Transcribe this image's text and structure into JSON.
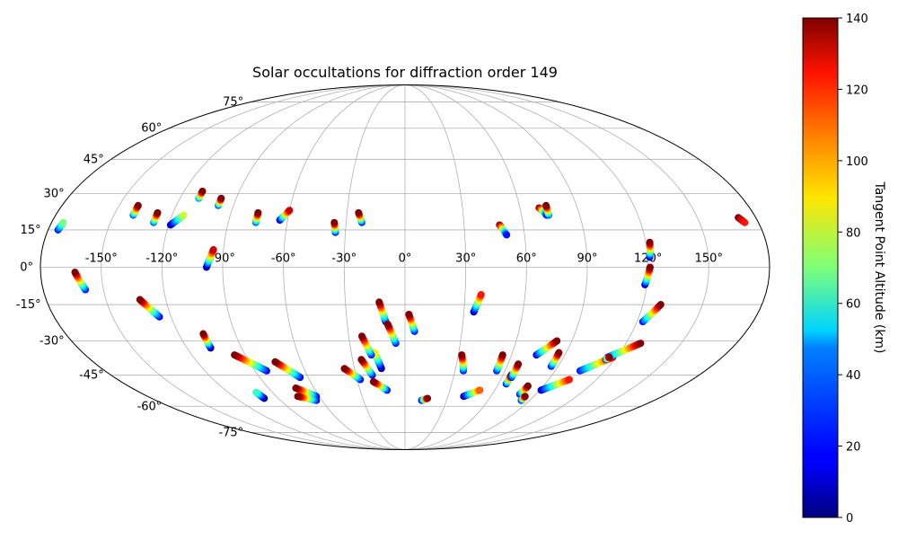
{
  "chart_data": {
    "type": "scatter",
    "projection": "mollweide",
    "title": "Solar occultations for diffraction order 149",
    "x_ticks": [
      "-150°",
      "-120°",
      "-90°",
      "-60°",
      "-30°",
      "0°",
      "30°",
      "60°",
      "90°",
      "120°",
      "150°"
    ],
    "x_tick_values": [
      -150,
      -120,
      -90,
      -60,
      -30,
      0,
      30,
      60,
      90,
      120,
      150
    ],
    "y_ticks": [
      "-75°",
      "-60°",
      "-45°",
      "-30°",
      "-15°",
      "0°",
      "15°",
      "30°",
      "45°",
      "60°",
      "75°"
    ],
    "y_tick_values": [
      -75,
      -60,
      -45,
      -30,
      -15,
      0,
      15,
      30,
      45,
      60,
      75
    ],
    "xlim": [
      -180,
      180
    ],
    "ylim": [
      -90,
      90
    ],
    "grid": true,
    "colorbar": {
      "label": "Tangent Point Altitude (km)",
      "colormap": "jet",
      "range": [
        0,
        140
      ],
      "ticks": [
        "0",
        "20",
        "40",
        "60",
        "80",
        "100",
        "120",
        "140"
      ],
      "tick_values": [
        0,
        20,
        40,
        60,
        80,
        100,
        120,
        140
      ]
    },
    "tracks": [
      {
        "lon_start": -175,
        "lat_start": 15,
        "lon_end": -174,
        "lat_end": 18,
        "alt_start": 20,
        "alt_end": 70
      },
      {
        "lon_start": -140,
        "lat_start": 21,
        "lon_end": -140,
        "lat_end": 25,
        "alt_start": 30,
        "alt_end": 140
      },
      {
        "lon_start": -128,
        "lat_start": 18,
        "lon_end": -128,
        "lat_end": 22,
        "alt_start": 30,
        "alt_end": 140
      },
      {
        "lon_start": -119,
        "lat_start": 17,
        "lon_end": -114,
        "lat_end": 21,
        "alt_start": 5,
        "alt_end": 80
      },
      {
        "lon_start": -110,
        "lat_start": 28,
        "lon_end": -110,
        "lat_end": 31,
        "alt_start": 40,
        "alt_end": 140
      },
      {
        "lon_start": -98,
        "lat_start": 25,
        "lon_end": -98,
        "lat_end": 28,
        "alt_start": 30,
        "alt_end": 140
      },
      {
        "lon_start": -98,
        "lat_start": 0,
        "lon_end": -95,
        "lat_end": 7,
        "alt_start": 0,
        "alt_end": 130
      },
      {
        "lon_start": -76,
        "lat_start": 18,
        "lon_end": -76,
        "lat_end": 22,
        "alt_start": 30,
        "alt_end": 140
      },
      {
        "lon_start": -64,
        "lat_start": 19,
        "lon_end": -60,
        "lat_end": 23,
        "alt_start": 10,
        "alt_end": 130
      },
      {
        "lon_start": -35,
        "lat_start": 14,
        "lon_end": -36,
        "lat_end": 18,
        "alt_start": 20,
        "alt_end": 140
      },
      {
        "lon_start": -22,
        "lat_start": 18,
        "lon_end": -24,
        "lat_end": 22,
        "alt_start": 20,
        "alt_end": 140
      },
      {
        "lon_start": -159,
        "lat_start": -9,
        "lon_end": -163,
        "lat_end": -2,
        "alt_start": 20,
        "alt_end": 140
      },
      {
        "lon_start": -126,
        "lat_start": -20,
        "lon_end": -133,
        "lat_end": -13,
        "alt_start": 15,
        "alt_end": 140
      },
      {
        "lon_start": -107,
        "lat_start": -33,
        "lon_end": -107,
        "lat_end": -27,
        "alt_start": 0,
        "alt_end": 140
      },
      {
        "lon_start": -83,
        "lat_start": -43,
        "lon_end": -96,
        "lat_end": -36,
        "alt_start": 15,
        "alt_end": 140
      },
      {
        "lon_start": -100,
        "lat_start": -56,
        "lon_end": -101,
        "lat_end": -53,
        "alt_start": 0,
        "alt_end": 60
      },
      {
        "lon_start": -65,
        "lat_start": -46,
        "lon_end": -75,
        "lat_end": -39,
        "alt_start": 15,
        "alt_end": 140
      },
      {
        "lon_start": -62,
        "lat_start": -55,
        "lon_end": -72,
        "lat_end": -51,
        "alt_start": 15,
        "alt_end": 140
      },
      {
        "lon_start": -64,
        "lat_start": -57,
        "lon_end": -75,
        "lat_end": -55,
        "alt_start": 15,
        "alt_end": 140
      },
      {
        "lon_start": -28,
        "lat_start": -47,
        "lon_end": -36,
        "lat_end": -42,
        "alt_start": 15,
        "alt_end": 140
      },
      {
        "lon_start": -20,
        "lat_start": -45,
        "lon_end": -25,
        "lat_end": -38,
        "alt_start": 15,
        "alt_end": 140
      },
      {
        "lon_start": -12,
        "lat_start": -52,
        "lon_end": -20,
        "lat_end": -48,
        "alt_start": 15,
        "alt_end": 140
      },
      {
        "lon_start": -14,
        "lat_start": -42,
        "lon_end": -17,
        "lat_end": -35,
        "alt_start": 0,
        "alt_end": 90
      },
      {
        "lon_start": -19,
        "lat_start": -36,
        "lon_end": -23,
        "lat_end": -28,
        "alt_start": 20,
        "alt_end": 140
      },
      {
        "lon_start": -10,
        "lat_start": -22,
        "lon_end": -13,
        "lat_end": -14,
        "alt_start": 15,
        "alt_end": 140
      },
      {
        "lon_start": -5,
        "lat_start": -31,
        "lon_end": -9,
        "lat_end": -23,
        "alt_start": 20,
        "alt_end": 140
      },
      {
        "lon_start": 5,
        "lat_start": -26,
        "lon_end": 2,
        "lat_end": -19,
        "alt_start": 20,
        "alt_end": 140
      },
      {
        "lon_start": 12,
        "lat_start": -57,
        "lon_end": 16,
        "lat_end": -56,
        "alt_start": 10,
        "alt_end": 140
      },
      {
        "lon_start": 35,
        "lat_start": -18,
        "lon_end": 38,
        "lat_end": -11,
        "alt_start": 5,
        "alt_end": 120
      },
      {
        "lon_start": 35,
        "lat_start": -43,
        "lon_end": 32,
        "lat_end": -36,
        "alt_start": 20,
        "alt_end": 140
      },
      {
        "lon_start": 41,
        "lat_start": -55,
        "lon_end": 50,
        "lat_end": -52,
        "alt_start": 5,
        "alt_end": 110
      },
      {
        "lon_start": 48,
        "lat_start": 17,
        "lon_end": 51,
        "lat_end": 13,
        "alt_start": 140,
        "alt_end": 20
      },
      {
        "lon_start": 55,
        "lat_start": -43,
        "lon_end": 55,
        "lat_end": -36,
        "alt_start": 20,
        "alt_end": 140
      },
      {
        "lon_start": 65,
        "lat_start": -49,
        "lon_end": 65,
        "lat_end": -45,
        "alt_start": 20,
        "alt_end": 140
      },
      {
        "lon_start": 66,
        "lat_start": -46,
        "lon_end": 66,
        "lat_end": -40,
        "alt_start": 20,
        "alt_end": 140
      },
      {
        "lon_start": 70,
        "lat_start": 24,
        "lon_end": 73,
        "lat_end": 21,
        "alt_start": 140,
        "alt_end": 20
      },
      {
        "lon_start": 74,
        "lat_start": 21,
        "lon_end": 74,
        "lat_end": 25,
        "alt_start": 30,
        "alt_end": 140
      },
      {
        "lon_start": 74,
        "lat_start": -36,
        "lon_end": 82,
        "lat_end": -30,
        "alt_start": 15,
        "alt_end": 140
      },
      {
        "lon_start": 79,
        "lat_start": -54,
        "lon_end": 80,
        "lat_end": -50,
        "alt_start": 20,
        "alt_end": 140
      },
      {
        "lon_start": 84,
        "lat_start": -57,
        "lon_end": 84,
        "lat_end": -55,
        "alt_start": 20,
        "alt_end": 140
      },
      {
        "lon_start": 86,
        "lat_start": -41,
        "lon_end": 86,
        "lat_end": -35,
        "alt_start": 20,
        "alt_end": 140
      },
      {
        "lon_start": 91,
        "lat_start": -52,
        "lon_end": 103,
        "lat_end": -47,
        "alt_start": 10,
        "alt_end": 120
      },
      {
        "lon_start": 105,
        "lat_start": -43,
        "lon_end": 118,
        "lat_end": -37,
        "alt_start": 20,
        "alt_end": 130
      },
      {
        "lon_start": 115,
        "lat_start": -37,
        "lon_end": 128,
        "lat_end": -31,
        "alt_start": 20,
        "alt_end": 140
      },
      {
        "lon_start": 115,
        "lat_start": -38,
        "lon_end": 116,
        "lat_end": -37,
        "alt_start": 20,
        "alt_end": 140
      },
      {
        "lon_start": 121,
        "lat_start": 4,
        "lon_end": 122,
        "lat_end": 10,
        "alt_start": 10,
        "alt_end": 140
      },
      {
        "lon_start": 119,
        "lat_start": -7,
        "lon_end": 121,
        "lat_end": 0,
        "alt_start": 10,
        "alt_end": 140
      },
      {
        "lon_start": 123,
        "lat_start": -22,
        "lon_end": 129,
        "lat_end": -15,
        "alt_start": 20,
        "alt_end": 140
      },
      {
        "lon_start": 171,
        "lat_start": 20,
        "lon_end": 173,
        "lat_end": 18,
        "alt_start": 140,
        "alt_end": 120
      }
    ]
  }
}
